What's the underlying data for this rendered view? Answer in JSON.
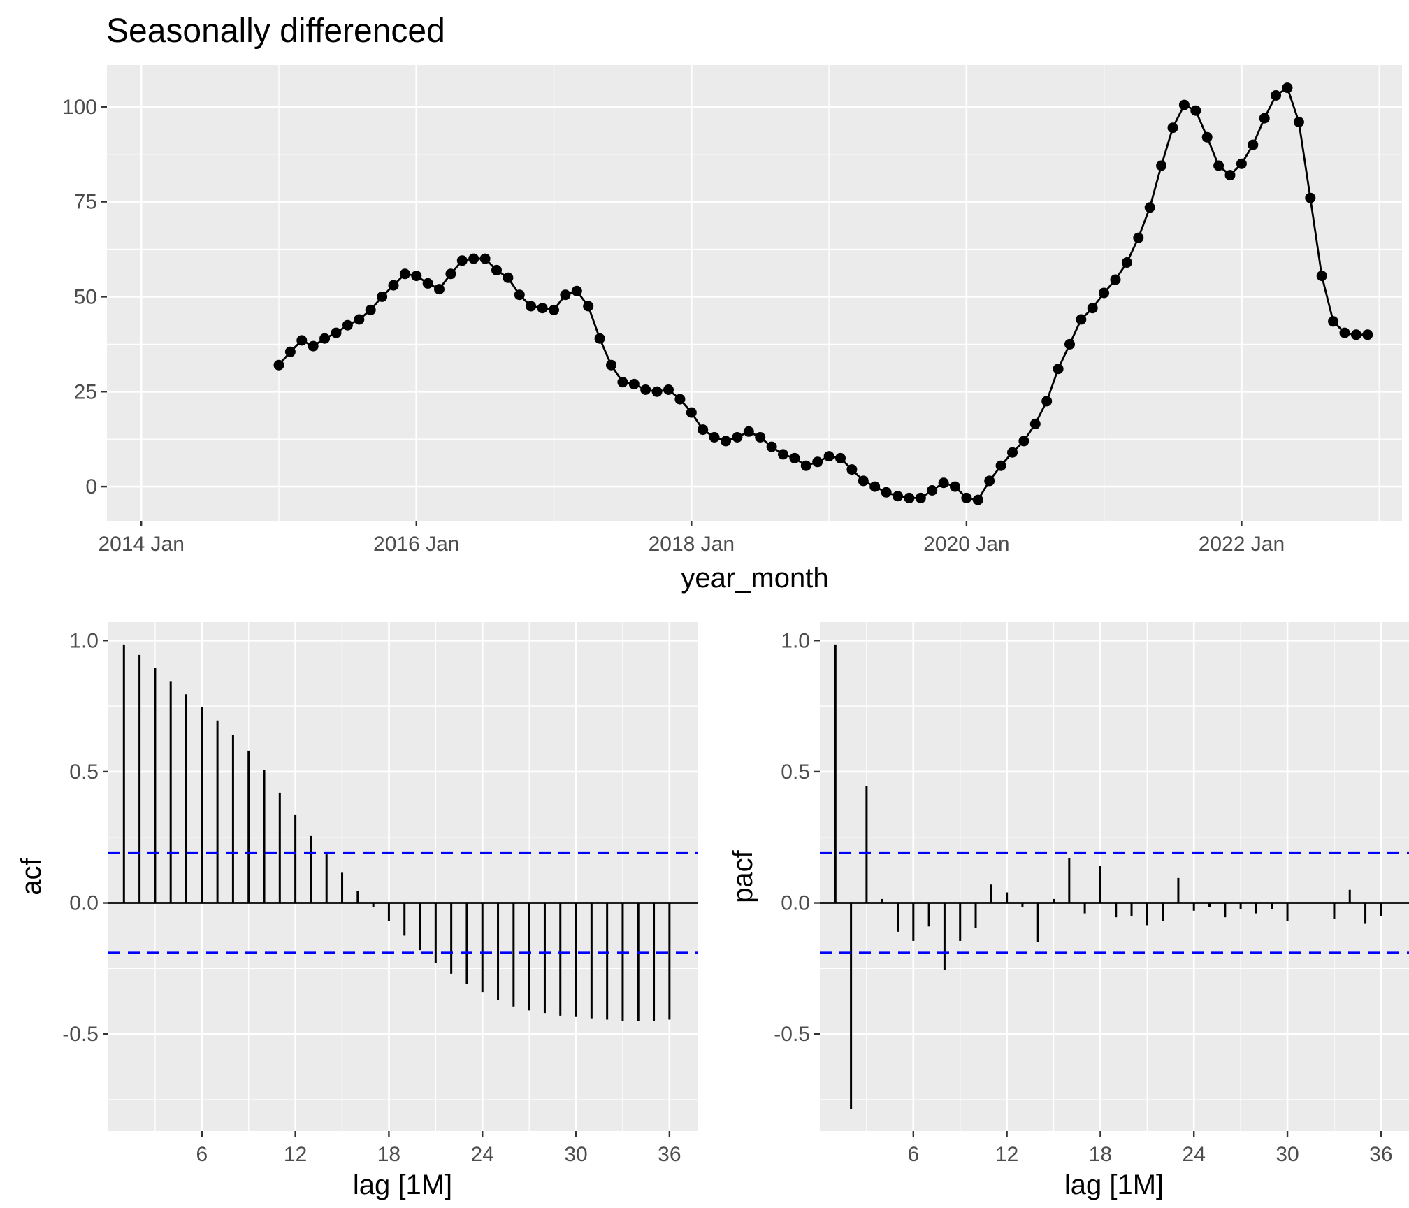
{
  "chart_data": [
    {
      "type": "line",
      "title": "Seasonally differenced",
      "xlabel": "year_month",
      "ylabel": "",
      "x_tick_labels": [
        "2014 Jan",
        "2016 Jan",
        "2018 Jan",
        "2020 Jan",
        "2022 Jan"
      ],
      "y_ticks": [
        0,
        25,
        50,
        75,
        100
      ],
      "ylim": [
        -9,
        111
      ],
      "xlim": [
        "2013-10",
        "2023-03"
      ],
      "grid": true,
      "series": [
        {
          "markers": true,
          "color": "#000000",
          "start": "2015-01",
          "x": [
            "2015-01",
            "2015-02",
            "2015-03",
            "2015-04",
            "2015-05",
            "2015-06",
            "2015-07",
            "2015-08",
            "2015-09",
            "2015-10",
            "2015-11",
            "2015-12",
            "2016-01",
            "2016-02",
            "2016-03",
            "2016-04",
            "2016-05",
            "2016-06",
            "2016-07",
            "2016-08",
            "2016-09",
            "2016-10",
            "2016-11",
            "2016-12",
            "2017-01",
            "2017-02",
            "2017-03",
            "2017-04",
            "2017-05",
            "2017-06",
            "2017-07",
            "2017-08",
            "2017-09",
            "2017-10",
            "2017-11",
            "2017-12",
            "2018-01",
            "2018-02",
            "2018-03",
            "2018-04",
            "2018-05",
            "2018-06",
            "2018-07",
            "2018-08",
            "2018-09",
            "2018-10",
            "2018-11",
            "2018-12",
            "2019-01",
            "2019-02",
            "2019-03",
            "2019-04",
            "2019-05",
            "2019-06",
            "2019-07",
            "2019-08",
            "2019-09",
            "2019-10",
            "2019-11",
            "2019-12",
            "2020-01",
            "2020-02",
            "2020-03",
            "2020-04",
            "2020-05",
            "2020-06",
            "2020-07",
            "2020-08",
            "2020-09",
            "2020-10",
            "2020-11",
            "2020-12",
            "2021-01",
            "2021-02",
            "2021-03",
            "2021-04",
            "2021-05",
            "2021-06",
            "2021-07",
            "2021-08",
            "2021-09",
            "2021-10",
            "2021-11",
            "2021-12",
            "2022-01",
            "2022-02",
            "2022-03",
            "2022-04",
            "2022-05",
            "2022-06",
            "2022-07",
            "2022-08",
            "2022-09",
            "2022-10",
            "2022-11",
            "2022-12"
          ],
          "values": [
            32,
            35.5,
            38.5,
            37,
            39,
            40.5,
            42.5,
            44,
            46.5,
            50,
            53,
            56,
            55.5,
            53.5,
            52,
            56,
            59.5,
            60,
            60,
            57,
            55,
            50.5,
            47.5,
            47,
            46.5,
            50.5,
            51.5,
            47.5,
            39,
            32,
            27.5,
            27,
            25.5,
            25,
            25.5,
            23,
            19.5,
            15,
            13,
            12,
            13,
            14.5,
            13,
            10.5,
            8.5,
            7.5,
            5.5,
            6.5,
            8,
            7.5,
            4.5,
            1.5,
            0,
            -1.5,
            -2.5,
            -3,
            -3,
            -1,
            1,
            0,
            -3,
            -3.5,
            1.5,
            5.5,
            9,
            12,
            16.5,
            22.5,
            31,
            37.5,
            44,
            47,
            51,
            54.5,
            59,
            65.5,
            73.5,
            84.5,
            94.5,
            100.5,
            99,
            92,
            84.5,
            82,
            85,
            90,
            97,
            103,
            105,
            96,
            76,
            55.5,
            43.5,
            40.5,
            40,
            40
          ]
        }
      ]
    },
    {
      "type": "bar",
      "xlabel": "lag [1M]",
      "ylabel": "acf",
      "x_ticks": [
        6,
        12,
        18,
        24,
        30,
        36
      ],
      "y_tick_labels": [
        "-0.5",
        "0.0",
        "0.5",
        "1.0"
      ],
      "ylim": [
        -0.87,
        1.07
      ],
      "xlim": [
        0,
        37.8
      ],
      "confidence_bound": 0.19,
      "confidence_color": "#0000ff",
      "lags": [
        1,
        2,
        3,
        4,
        5,
        6,
        7,
        8,
        9,
        10,
        11,
        12,
        13,
        14,
        15,
        16,
        17,
        18,
        19,
        20,
        21,
        22,
        23,
        24,
        25,
        26,
        27,
        28,
        29,
        30,
        31,
        32,
        33,
        34,
        35,
        36
      ],
      "values": [
        0.985,
        0.945,
        0.895,
        0.845,
        0.795,
        0.745,
        0.695,
        0.64,
        0.58,
        0.505,
        0.42,
        0.335,
        0.255,
        0.185,
        0.115,
        0.045,
        -0.015,
        -0.07,
        -0.125,
        -0.18,
        -0.23,
        -0.27,
        -0.31,
        -0.34,
        -0.37,
        -0.395,
        -0.41,
        -0.42,
        -0.43,
        -0.435,
        -0.44,
        -0.445,
        -0.45,
        -0.45,
        -0.45,
        -0.445
      ]
    },
    {
      "type": "bar",
      "xlabel": "lag [1M]",
      "ylabel": "pacf",
      "x_ticks": [
        6,
        12,
        18,
        24,
        30,
        36
      ],
      "y_tick_labels": [
        "-0.5",
        "0.0",
        "0.5",
        "1.0"
      ],
      "ylim": [
        -0.87,
        1.07
      ],
      "xlim": [
        0,
        37.8
      ],
      "confidence_bound": 0.19,
      "confidence_color": "#0000ff",
      "lags": [
        1,
        2,
        3,
        4,
        5,
        6,
        7,
        8,
        9,
        10,
        11,
        12,
        13,
        14,
        15,
        16,
        17,
        18,
        19,
        20,
        21,
        22,
        23,
        24,
        25,
        26,
        27,
        28,
        29,
        30,
        31,
        32,
        33,
        34,
        35,
        36
      ],
      "values": [
        0.985,
        -0.785,
        0.445,
        0.015,
        -0.11,
        -0.145,
        -0.09,
        -0.255,
        -0.145,
        -0.095,
        0.07,
        0.04,
        -0.015,
        -0.15,
        0.015,
        0.17,
        -0.04,
        0.14,
        -0.055,
        -0.05,
        -0.085,
        -0.07,
        0.095,
        -0.03,
        -0.015,
        -0.055,
        -0.025,
        -0.04,
        -0.025,
        -0.07,
        0.0,
        0.0,
        -0.06,
        0.05,
        -0.08,
        -0.05
      ]
    }
  ]
}
